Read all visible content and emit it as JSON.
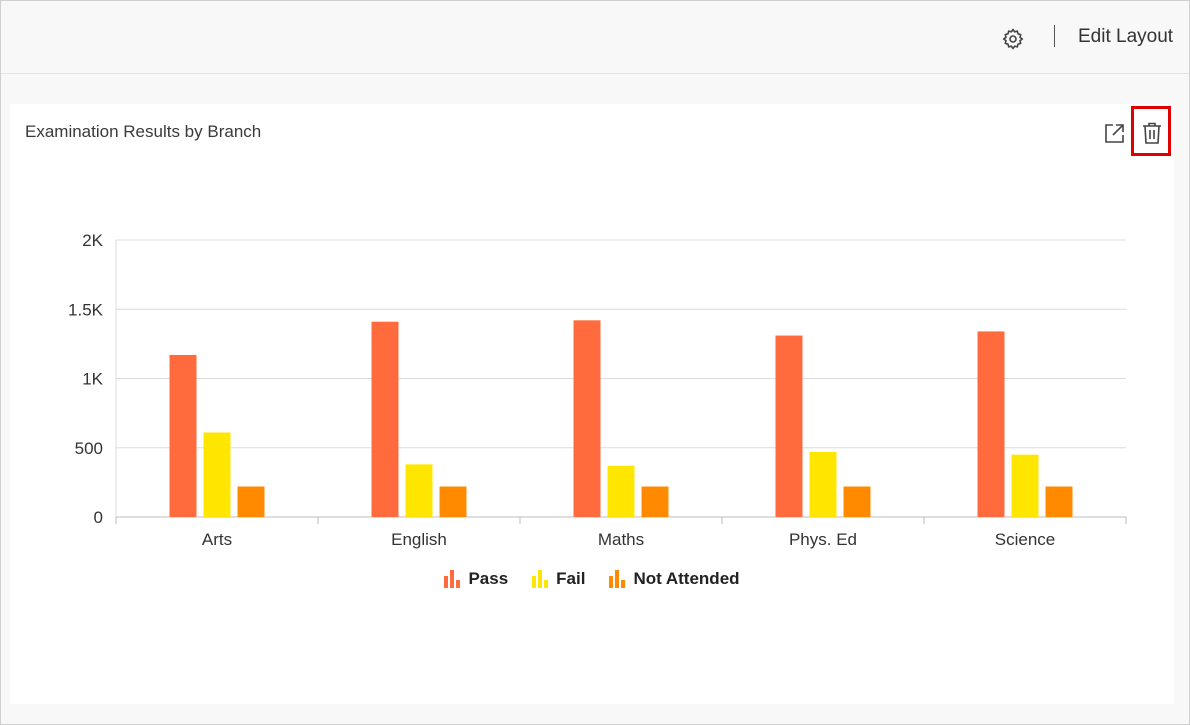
{
  "header": {
    "settings_icon": "gear-icon",
    "edit_layout_label": "Edit Layout"
  },
  "widget": {
    "title": "Examination Results by Branch",
    "expand_icon": "external-link-icon",
    "delete_icon": "trash-icon"
  },
  "chart_data": {
    "type": "bar",
    "title": "",
    "xlabel": "",
    "ylabel": "",
    "categories": [
      "Arts",
      "English",
      "Maths",
      "Phys. Ed",
      "Science"
    ],
    "ylim": [
      0,
      2000
    ],
    "yticks": [
      0,
      500,
      1000,
      1500,
      2000
    ],
    "ytick_labels": [
      "0",
      "500",
      "1K",
      "1.5K",
      "2K"
    ],
    "grid": true,
    "legend_position": "bottom",
    "series": [
      {
        "name": "Pass",
        "color": "#ff6b3d",
        "values": [
          1170,
          1410,
          1420,
          1310,
          1340
        ]
      },
      {
        "name": "Fail",
        "color": "#ffe600",
        "values": [
          610,
          380,
          370,
          470,
          450
        ]
      },
      {
        "name": "Not Attended",
        "color": "#ff8a00",
        "values": [
          220,
          220,
          220,
          220,
          220
        ]
      }
    ]
  }
}
